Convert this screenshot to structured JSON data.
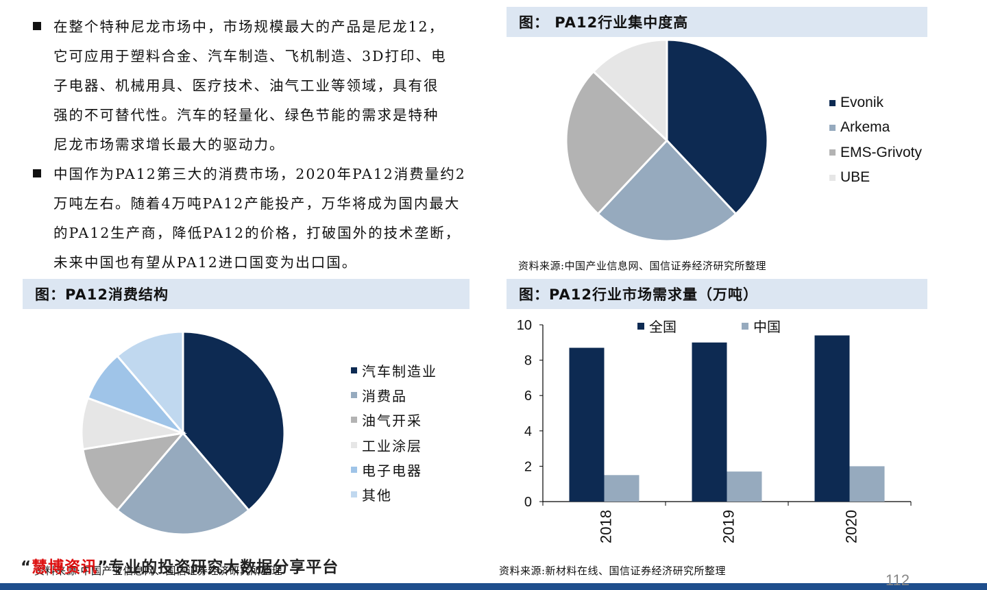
{
  "bullets": [
    "在整个特种尼龙市场中，市场规模最大的产品是尼龙12，\n它可应用于塑料合金、汽车制造、飞机制造、3D打印、电\n子电器、机械用具、医疗技术、油气工业等领域，具有很\n强的不可替代性。汽车的轻量化、绿色节能的需求是特种\n尼龙市场需求增长最大的驱动力。",
    "中国作为PA12第三大的消费市场，2020年PA12消费量约2\n万吨左右。随着4万吨PA12产能投产，万华将成为国内最大\n的PA12生产商，降低PA12的价格，打破国外的技术垄断，\n未来中国也有望从PA12进口国变为出口国。"
  ],
  "panels": {
    "top_right_title": "图： PA12行业集中度高",
    "top_right_source": "资料来源:中国产业信息网、国信证券经济研究所整理",
    "bottom_left_title": "图：PA12消费结构",
    "bottom_left_source": "资料来源:中国产业信息网、国信证券经济研究所整理",
    "bottom_right_title": "图：PA12行业市场需求量（万吨）",
    "bottom_right_source": "资料来源:新材料在线、国信证券经济研究所整理"
  },
  "watermark": {
    "brand": "慧博资讯",
    "tagline": "专业的投资研究大数据分享平台",
    "quote_open": "“",
    "quote_close": "”"
  },
  "page_number": "112",
  "chart_data": [
    {
      "type": "pie",
      "categories": [
        "Evonik",
        "Arkema",
        "EMS-Grivoty",
        "UBE"
      ],
      "values": [
        38,
        24,
        25,
        13
      ],
      "colors": [
        "#0d2a52",
        "#96aabe",
        "#b3b3b3",
        "#e6e6e6"
      ]
    },
    {
      "type": "pie",
      "categories": [
        "汽车制造业",
        "消费品",
        "油气开采",
        "工业涂层",
        "电子电器",
        "其他"
      ],
      "values": [
        38,
        22,
        11,
        8,
        8,
        11
      ],
      "colors": [
        "#0d2a52",
        "#96aabe",
        "#b3b3b3",
        "#e6e6e6",
        "#9fc4e8",
        "#c0d8ef"
      ]
    },
    {
      "type": "bar",
      "categories": [
        "2018",
        "2019",
        "2020"
      ],
      "series": [
        {
          "name": "全国",
          "values": [
            8.7,
            9.0,
            9.4
          ],
          "color": "#0d2a52"
        },
        {
          "name": "中国",
          "values": [
            1.5,
            1.7,
            2.0
          ],
          "color": "#96aabe"
        }
      ],
      "ylim": [
        0,
        10
      ],
      "yticks": [
        "0",
        "2",
        "4",
        "6",
        "8",
        "10"
      ],
      "legend": "top"
    }
  ]
}
